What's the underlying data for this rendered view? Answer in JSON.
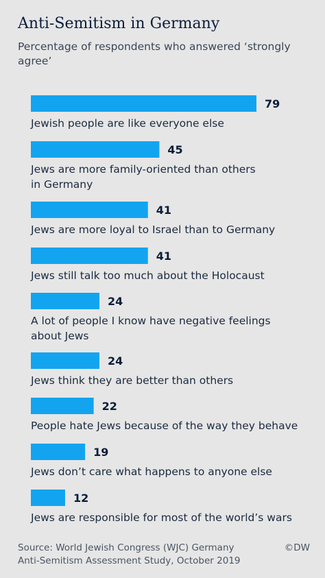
{
  "chart_data": {
    "type": "bar",
    "orientation": "horizontal",
    "title": "Anti-Semitism in Germany",
    "subtitle": "Percentage of respondents who answered ‘strongly agree’",
    "categories": [
      [
        "Jewish people are like everyone else"
      ],
      [
        "Jews are more family-oriented than others",
        "in Germany"
      ],
      [
        "Jews are more loyal to Israel than to Germany"
      ],
      [
        "Jews still talk too much about the Holocaust"
      ],
      [
        "A lot of people I know have negative feelings",
        "about Jews"
      ],
      [
        "Jews think they are better than others"
      ],
      [
        "People hate Jews because of the way they behave"
      ],
      [
        "Jews don’t care what happens to anyone else"
      ],
      [
        "Jews are responsible for most of the world’s wars"
      ]
    ],
    "values": [
      79,
      45,
      41,
      41,
      24,
      24,
      22,
      19,
      12
    ],
    "xlim": [
      0,
      100
    ],
    "grid": false,
    "bar_color": "#13a4f0"
  },
  "source": [
    "Source: World Jewish Congress (WJC) Germany",
    "Anti-Semitism Assessment Study, October 2019"
  ],
  "credit": "©DW"
}
